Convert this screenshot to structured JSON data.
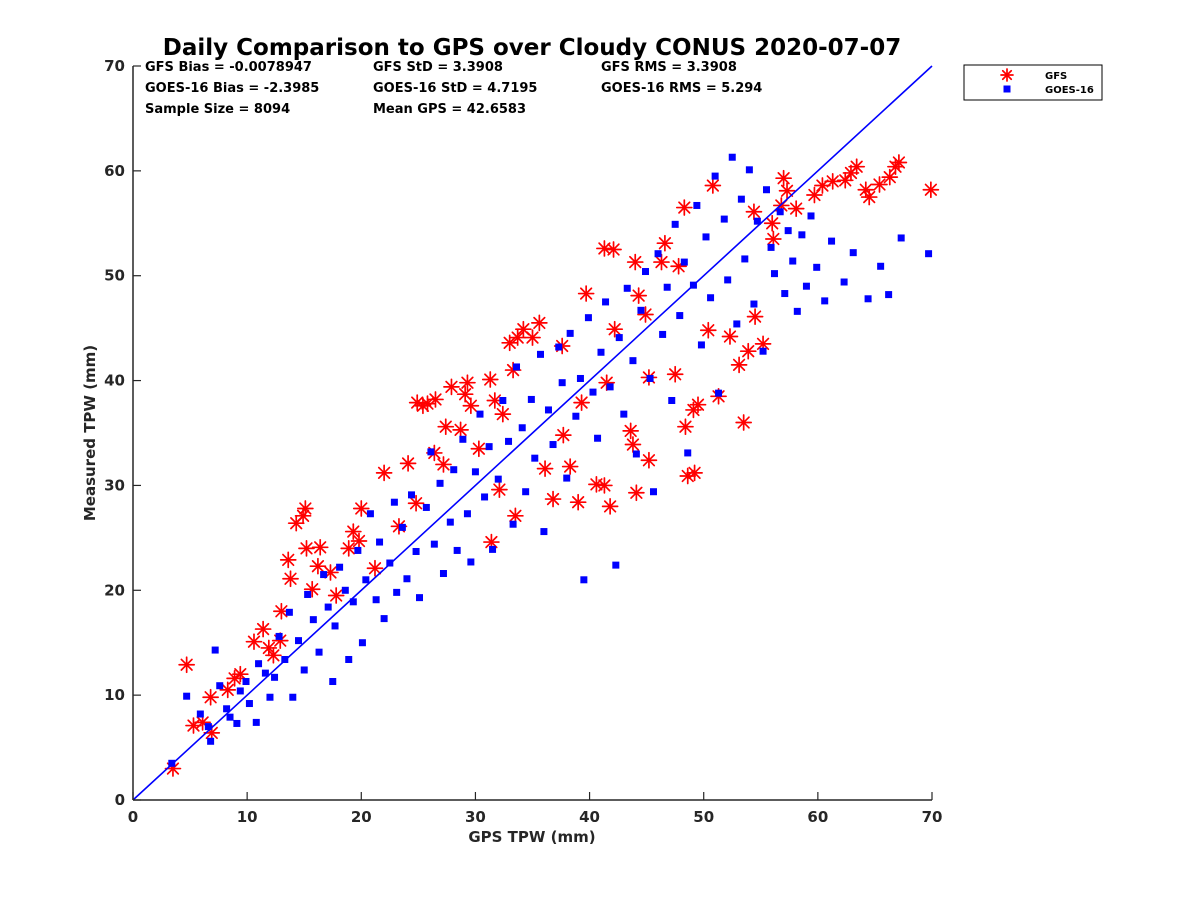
{
  "chart_data": {
    "type": "scatter",
    "title": "Daily Comparison to GPS over Cloudy CONUS 2020-07-07",
    "xlabel": "GPS TPW (mm)",
    "ylabel": "Measured TPW (mm)",
    "xlim": [
      0,
      70
    ],
    "ylim": [
      0,
      70
    ],
    "xticks": [
      0,
      10,
      20,
      30,
      40,
      50,
      60,
      70
    ],
    "yticks": [
      0,
      10,
      20,
      30,
      40,
      50,
      60,
      70
    ],
    "grid": false,
    "legend_position": "outside-top-right",
    "reference_line": {
      "name": "1:1 line",
      "x": [
        0,
        70
      ],
      "y": [
        0,
        70
      ],
      "color": "#0000ff"
    },
    "stats": [
      [
        "GFS Bias = -0.0078947",
        "GFS StD = 3.3908",
        "GFS RMS = 3.3908"
      ],
      [
        "GOES-16 Bias = -2.3985",
        "GOES-16 StD = 4.7195",
        "GOES-16 RMS = 5.294"
      ],
      [
        "Sample Size = 8094",
        "Mean GPS = 42.6583",
        ""
      ]
    ],
    "series": [
      {
        "name": "GFS",
        "marker": "asterisk",
        "color": "#ff0000",
        "points": [
          [
            3.5,
            3.0
          ],
          [
            4.7,
            12.9
          ],
          [
            5.3,
            7.1
          ],
          [
            6.1,
            7.4
          ],
          [
            6.8,
            9.8
          ],
          [
            6.9,
            6.4
          ],
          [
            8.3,
            10.5
          ],
          [
            8.9,
            11.6
          ],
          [
            9.4,
            12.0
          ],
          [
            10.6,
            15.1
          ],
          [
            11.4,
            16.3
          ],
          [
            11.9,
            14.5
          ],
          [
            12.3,
            13.8
          ],
          [
            12.9,
            15.2
          ],
          [
            13.0,
            18.0
          ],
          [
            13.6,
            22.9
          ],
          [
            13.8,
            21.1
          ],
          [
            14.3,
            26.4
          ],
          [
            14.9,
            27.1
          ],
          [
            15.1,
            27.8
          ],
          [
            15.2,
            24.0
          ],
          [
            15.7,
            20.1
          ],
          [
            16.2,
            22.3
          ],
          [
            16.4,
            24.1
          ],
          [
            17.3,
            21.7
          ],
          [
            17.8,
            19.5
          ],
          [
            18.9,
            24.0
          ],
          [
            19.3,
            25.6
          ],
          [
            19.8,
            24.7
          ],
          [
            20.0,
            27.8
          ],
          [
            21.2,
            22.1
          ],
          [
            22.0,
            31.2
          ],
          [
            23.3,
            26.1
          ],
          [
            24.1,
            32.1
          ],
          [
            24.8,
            28.3
          ],
          [
            24.9,
            37.9
          ],
          [
            25.4,
            37.6
          ],
          [
            25.8,
            37.8
          ],
          [
            26.4,
            33.1
          ],
          [
            26.5,
            38.2
          ],
          [
            27.2,
            32.0
          ],
          [
            27.4,
            35.6
          ],
          [
            27.9,
            39.4
          ],
          [
            28.7,
            35.3
          ],
          [
            29.1,
            38.7
          ],
          [
            29.3,
            39.8
          ],
          [
            29.6,
            37.6
          ],
          [
            30.3,
            33.5
          ],
          [
            31.3,
            40.1
          ],
          [
            31.4,
            24.6
          ],
          [
            31.7,
            38.1
          ],
          [
            32.1,
            29.6
          ],
          [
            32.4,
            36.8
          ],
          [
            33.0,
            43.6
          ],
          [
            33.3,
            41.0
          ],
          [
            33.5,
            27.1
          ],
          [
            33.7,
            44.1
          ],
          [
            34.2,
            44.9
          ],
          [
            35.0,
            44.1
          ],
          [
            35.6,
            45.5
          ],
          [
            36.1,
            31.6
          ],
          [
            36.8,
            28.7
          ],
          [
            37.6,
            43.3
          ],
          [
            37.7,
            34.8
          ],
          [
            38.3,
            31.8
          ],
          [
            39.0,
            28.4
          ],
          [
            39.3,
            37.9
          ],
          [
            39.7,
            48.3
          ],
          [
            40.6,
            30.1
          ],
          [
            41.3,
            52.6
          ],
          [
            41.3,
            30.0
          ],
          [
            41.5,
            39.8
          ],
          [
            41.8,
            28.0
          ],
          [
            42.1,
            52.5
          ],
          [
            42.2,
            44.9
          ],
          [
            43.6,
            35.2
          ],
          [
            43.8,
            33.9
          ],
          [
            44.0,
            51.3
          ],
          [
            44.1,
            29.3
          ],
          [
            44.3,
            48.1
          ],
          [
            44.9,
            46.3
          ],
          [
            45.2,
            32.4
          ],
          [
            45.2,
            40.3
          ],
          [
            46.3,
            51.3
          ],
          [
            46.6,
            53.1
          ],
          [
            47.5,
            40.6
          ],
          [
            47.8,
            50.9
          ],
          [
            48.3,
            56.5
          ],
          [
            48.4,
            35.6
          ],
          [
            48.6,
            30.9
          ],
          [
            49.1,
            37.2
          ],
          [
            49.2,
            31.2
          ],
          [
            49.5,
            37.7
          ],
          [
            50.4,
            44.8
          ],
          [
            50.8,
            58.6
          ],
          [
            51.3,
            38.5
          ],
          [
            52.3,
            44.2
          ],
          [
            53.1,
            41.5
          ],
          [
            53.5,
            36.0
          ],
          [
            53.9,
            42.8
          ],
          [
            54.4,
            56.1
          ],
          [
            54.5,
            46.1
          ],
          [
            55.2,
            43.5
          ],
          [
            56.0,
            55.0
          ],
          [
            56.1,
            53.5
          ],
          [
            56.8,
            56.7
          ],
          [
            57.0,
            59.3
          ],
          [
            57.3,
            58.1
          ],
          [
            58.1,
            56.4
          ],
          [
            59.7,
            57.7
          ],
          [
            60.4,
            58.6
          ],
          [
            61.3,
            59.0
          ],
          [
            62.4,
            59.1
          ],
          [
            62.9,
            59.8
          ],
          [
            63.4,
            60.4
          ],
          [
            64.2,
            58.2
          ],
          [
            64.5,
            57.5
          ],
          [
            65.4,
            58.7
          ],
          [
            66.3,
            59.4
          ],
          [
            66.8,
            60.4
          ],
          [
            67.1,
            60.8
          ],
          [
            69.9,
            58.2
          ]
        ]
      },
      {
        "name": "GOES-16",
        "marker": "square",
        "color": "#0000ff",
        "points": [
          [
            3.4,
            3.5
          ],
          [
            4.7,
            9.9
          ],
          [
            5.9,
            8.2
          ],
          [
            6.6,
            7.0
          ],
          [
            6.8,
            5.6
          ],
          [
            7.2,
            14.3
          ],
          [
            7.6,
            10.9
          ],
          [
            8.2,
            8.7
          ],
          [
            8.5,
            7.9
          ],
          [
            9.1,
            7.3
          ],
          [
            9.4,
            10.4
          ],
          [
            9.9,
            11.3
          ],
          [
            10.2,
            9.2
          ],
          [
            10.8,
            7.4
          ],
          [
            11.0,
            13.0
          ],
          [
            11.6,
            12.1
          ],
          [
            12.0,
            9.8
          ],
          [
            12.4,
            11.7
          ],
          [
            12.8,
            15.6
          ],
          [
            13.3,
            13.4
          ],
          [
            13.7,
            17.9
          ],
          [
            14.0,
            9.8
          ],
          [
            14.5,
            15.2
          ],
          [
            15.0,
            12.4
          ],
          [
            15.3,
            19.6
          ],
          [
            15.8,
            17.2
          ],
          [
            16.3,
            14.1
          ],
          [
            16.7,
            21.5
          ],
          [
            17.1,
            18.4
          ],
          [
            17.5,
            11.3
          ],
          [
            17.7,
            16.6
          ],
          [
            18.1,
            22.2
          ],
          [
            18.6,
            20.0
          ],
          [
            18.9,
            13.4
          ],
          [
            19.3,
            18.9
          ],
          [
            19.7,
            23.8
          ],
          [
            20.1,
            15.0
          ],
          [
            20.4,
            21.0
          ],
          [
            20.8,
            27.3
          ],
          [
            21.3,
            19.1
          ],
          [
            21.6,
            24.6
          ],
          [
            22.0,
            17.3
          ],
          [
            22.5,
            22.6
          ],
          [
            22.9,
            28.4
          ],
          [
            23.1,
            19.8
          ],
          [
            23.6,
            26.0
          ],
          [
            24.0,
            21.1
          ],
          [
            24.4,
            29.1
          ],
          [
            24.8,
            23.7
          ],
          [
            25.1,
            19.3
          ],
          [
            25.7,
            27.9
          ],
          [
            26.1,
            33.2
          ],
          [
            26.4,
            24.4
          ],
          [
            26.9,
            30.2
          ],
          [
            27.2,
            21.6
          ],
          [
            27.8,
            26.5
          ],
          [
            28.1,
            31.5
          ],
          [
            28.4,
            23.8
          ],
          [
            28.9,
            34.4
          ],
          [
            29.3,
            27.3
          ],
          [
            29.6,
            22.7
          ],
          [
            30.0,
            31.3
          ],
          [
            30.4,
            36.8
          ],
          [
            30.8,
            28.9
          ],
          [
            31.2,
            33.7
          ],
          [
            31.5,
            23.9
          ],
          [
            32.0,
            30.6
          ],
          [
            32.4,
            38.1
          ],
          [
            32.9,
            34.2
          ],
          [
            33.3,
            26.3
          ],
          [
            33.6,
            41.3
          ],
          [
            34.1,
            35.5
          ],
          [
            34.4,
            29.4
          ],
          [
            34.9,
            38.2
          ],
          [
            35.2,
            32.6
          ],
          [
            35.7,
            42.5
          ],
          [
            36.0,
            25.6
          ],
          [
            36.4,
            37.2
          ],
          [
            36.8,
            33.9
          ],
          [
            37.3,
            43.2
          ],
          [
            37.6,
            39.8
          ],
          [
            38.0,
            30.7
          ],
          [
            38.3,
            44.5
          ],
          [
            38.8,
            36.6
          ],
          [
            39.2,
            40.2
          ],
          [
            39.5,
            21.0
          ],
          [
            39.9,
            46.0
          ],
          [
            40.3,
            38.9
          ],
          [
            40.7,
            34.5
          ],
          [
            41.0,
            42.7
          ],
          [
            41.4,
            47.5
          ],
          [
            41.8,
            39.4
          ],
          [
            42.3,
            22.4
          ],
          [
            42.6,
            44.1
          ],
          [
            43.0,
            36.8
          ],
          [
            43.3,
            48.8
          ],
          [
            43.8,
            41.9
          ],
          [
            44.1,
            33.0
          ],
          [
            44.5,
            46.7
          ],
          [
            44.9,
            50.4
          ],
          [
            45.3,
            40.2
          ],
          [
            45.6,
            29.4
          ],
          [
            46.0,
            52.1
          ],
          [
            46.4,
            44.4
          ],
          [
            46.8,
            48.9
          ],
          [
            47.2,
            38.1
          ],
          [
            47.5,
            54.9
          ],
          [
            47.9,
            46.2
          ],
          [
            48.3,
            51.3
          ],
          [
            48.6,
            33.1
          ],
          [
            49.1,
            49.1
          ],
          [
            49.4,
            56.7
          ],
          [
            49.8,
            43.4
          ],
          [
            50.2,
            53.7
          ],
          [
            50.6,
            47.9
          ],
          [
            51.0,
            59.5
          ],
          [
            51.3,
            38.8
          ],
          [
            51.8,
            55.4
          ],
          [
            52.1,
            49.6
          ],
          [
            52.5,
            61.3
          ],
          [
            52.9,
            45.4
          ],
          [
            53.3,
            57.3
          ],
          [
            53.6,
            51.6
          ],
          [
            54.0,
            60.1
          ],
          [
            54.4,
            47.3
          ],
          [
            54.7,
            55.2
          ],
          [
            55.2,
            42.8
          ],
          [
            55.5,
            58.2
          ],
          [
            55.9,
            52.7
          ],
          [
            56.2,
            50.2
          ],
          [
            56.7,
            56.1
          ],
          [
            57.1,
            48.3
          ],
          [
            57.4,
            54.3
          ],
          [
            57.8,
            51.4
          ],
          [
            58.2,
            46.6
          ],
          [
            58.6,
            53.9
          ],
          [
            59.0,
            49.0
          ],
          [
            59.4,
            55.7
          ],
          [
            59.9,
            50.8
          ],
          [
            60.6,
            47.6
          ],
          [
            61.2,
            53.3
          ],
          [
            62.3,
            49.4
          ],
          [
            63.1,
            52.2
          ],
          [
            64.4,
            47.8
          ],
          [
            65.5,
            50.9
          ],
          [
            66.2,
            48.2
          ],
          [
            67.3,
            53.6
          ],
          [
            69.7,
            52.1
          ]
        ]
      }
    ]
  }
}
